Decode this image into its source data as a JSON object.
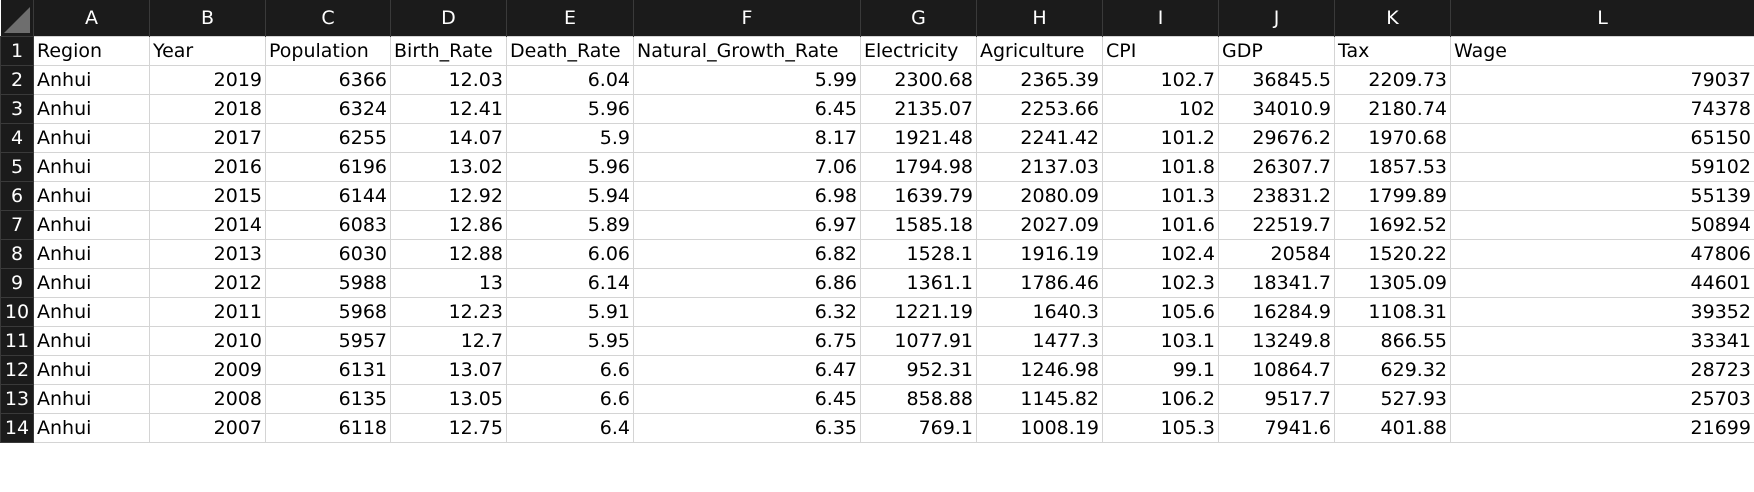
{
  "columns": [
    "A",
    "B",
    "C",
    "D",
    "E",
    "F",
    "G",
    "H",
    "I",
    "J",
    "K",
    "L"
  ],
  "header_row": [
    "Region",
    "Year",
    "Population",
    "Birth_Rate",
    "Death_Rate",
    "Natural_Growth_Rate",
    "Electricity",
    "Agriculture",
    "CPI",
    "GDP",
    "Tax",
    "Wage"
  ],
  "rows": [
    {
      "num": "2",
      "cells": [
        "Anhui",
        "2019",
        "6366",
        "12.03",
        "6.04",
        "5.99",
        "2300.68",
        "2365.39",
        "102.7",
        "36845.5",
        "2209.73",
        "79037"
      ]
    },
    {
      "num": "3",
      "cells": [
        "Anhui",
        "2018",
        "6324",
        "12.41",
        "5.96",
        "6.45",
        "2135.07",
        "2253.66",
        "102",
        "34010.9",
        "2180.74",
        "74378"
      ]
    },
    {
      "num": "4",
      "cells": [
        "Anhui",
        "2017",
        "6255",
        "14.07",
        "5.9",
        "8.17",
        "1921.48",
        "2241.42",
        "101.2",
        "29676.2",
        "1970.68",
        "65150"
      ]
    },
    {
      "num": "5",
      "cells": [
        "Anhui",
        "2016",
        "6196",
        "13.02",
        "5.96",
        "7.06",
        "1794.98",
        "2137.03",
        "101.8",
        "26307.7",
        "1857.53",
        "59102"
      ]
    },
    {
      "num": "6",
      "cells": [
        "Anhui",
        "2015",
        "6144",
        "12.92",
        "5.94",
        "6.98",
        "1639.79",
        "2080.09",
        "101.3",
        "23831.2",
        "1799.89",
        "55139"
      ]
    },
    {
      "num": "7",
      "cells": [
        "Anhui",
        "2014",
        "6083",
        "12.86",
        "5.89",
        "6.97",
        "1585.18",
        "2027.09",
        "101.6",
        "22519.7",
        "1692.52",
        "50894"
      ]
    },
    {
      "num": "8",
      "cells": [
        "Anhui",
        "2013",
        "6030",
        "12.88",
        "6.06",
        "6.82",
        "1528.1",
        "1916.19",
        "102.4",
        "20584",
        "1520.22",
        "47806"
      ]
    },
    {
      "num": "9",
      "cells": [
        "Anhui",
        "2012",
        "5988",
        "13",
        "6.14",
        "6.86",
        "1361.1",
        "1786.46",
        "102.3",
        "18341.7",
        "1305.09",
        "44601"
      ]
    },
    {
      "num": "10",
      "cells": [
        "Anhui",
        "2011",
        "5968",
        "12.23",
        "5.91",
        "6.32",
        "1221.19",
        "1640.3",
        "105.6",
        "16284.9",
        "1108.31",
        "39352"
      ]
    },
    {
      "num": "11",
      "cells": [
        "Anhui",
        "2010",
        "5957",
        "12.7",
        "5.95",
        "6.75",
        "1077.91",
        "1477.3",
        "103.1",
        "13249.8",
        "866.55",
        "33341"
      ]
    },
    {
      "num": "12",
      "cells": [
        "Anhui",
        "2009",
        "6131",
        "13.07",
        "6.6",
        "6.47",
        "952.31",
        "1246.98",
        "99.1",
        "10864.7",
        "629.32",
        "28723"
      ]
    },
    {
      "num": "13",
      "cells": [
        "Anhui",
        "2008",
        "6135",
        "13.05",
        "6.6",
        "6.45",
        "858.88",
        "1145.82",
        "106.2",
        "9517.7",
        "527.93",
        "25703"
      ]
    },
    {
      "num": "14",
      "cells": [
        "Anhui",
        "2007",
        "6118",
        "12.75",
        "6.4",
        "6.35",
        "769.1",
        "1008.19",
        "105.3",
        "7941.6",
        "401.88",
        "21699"
      ]
    }
  ]
}
